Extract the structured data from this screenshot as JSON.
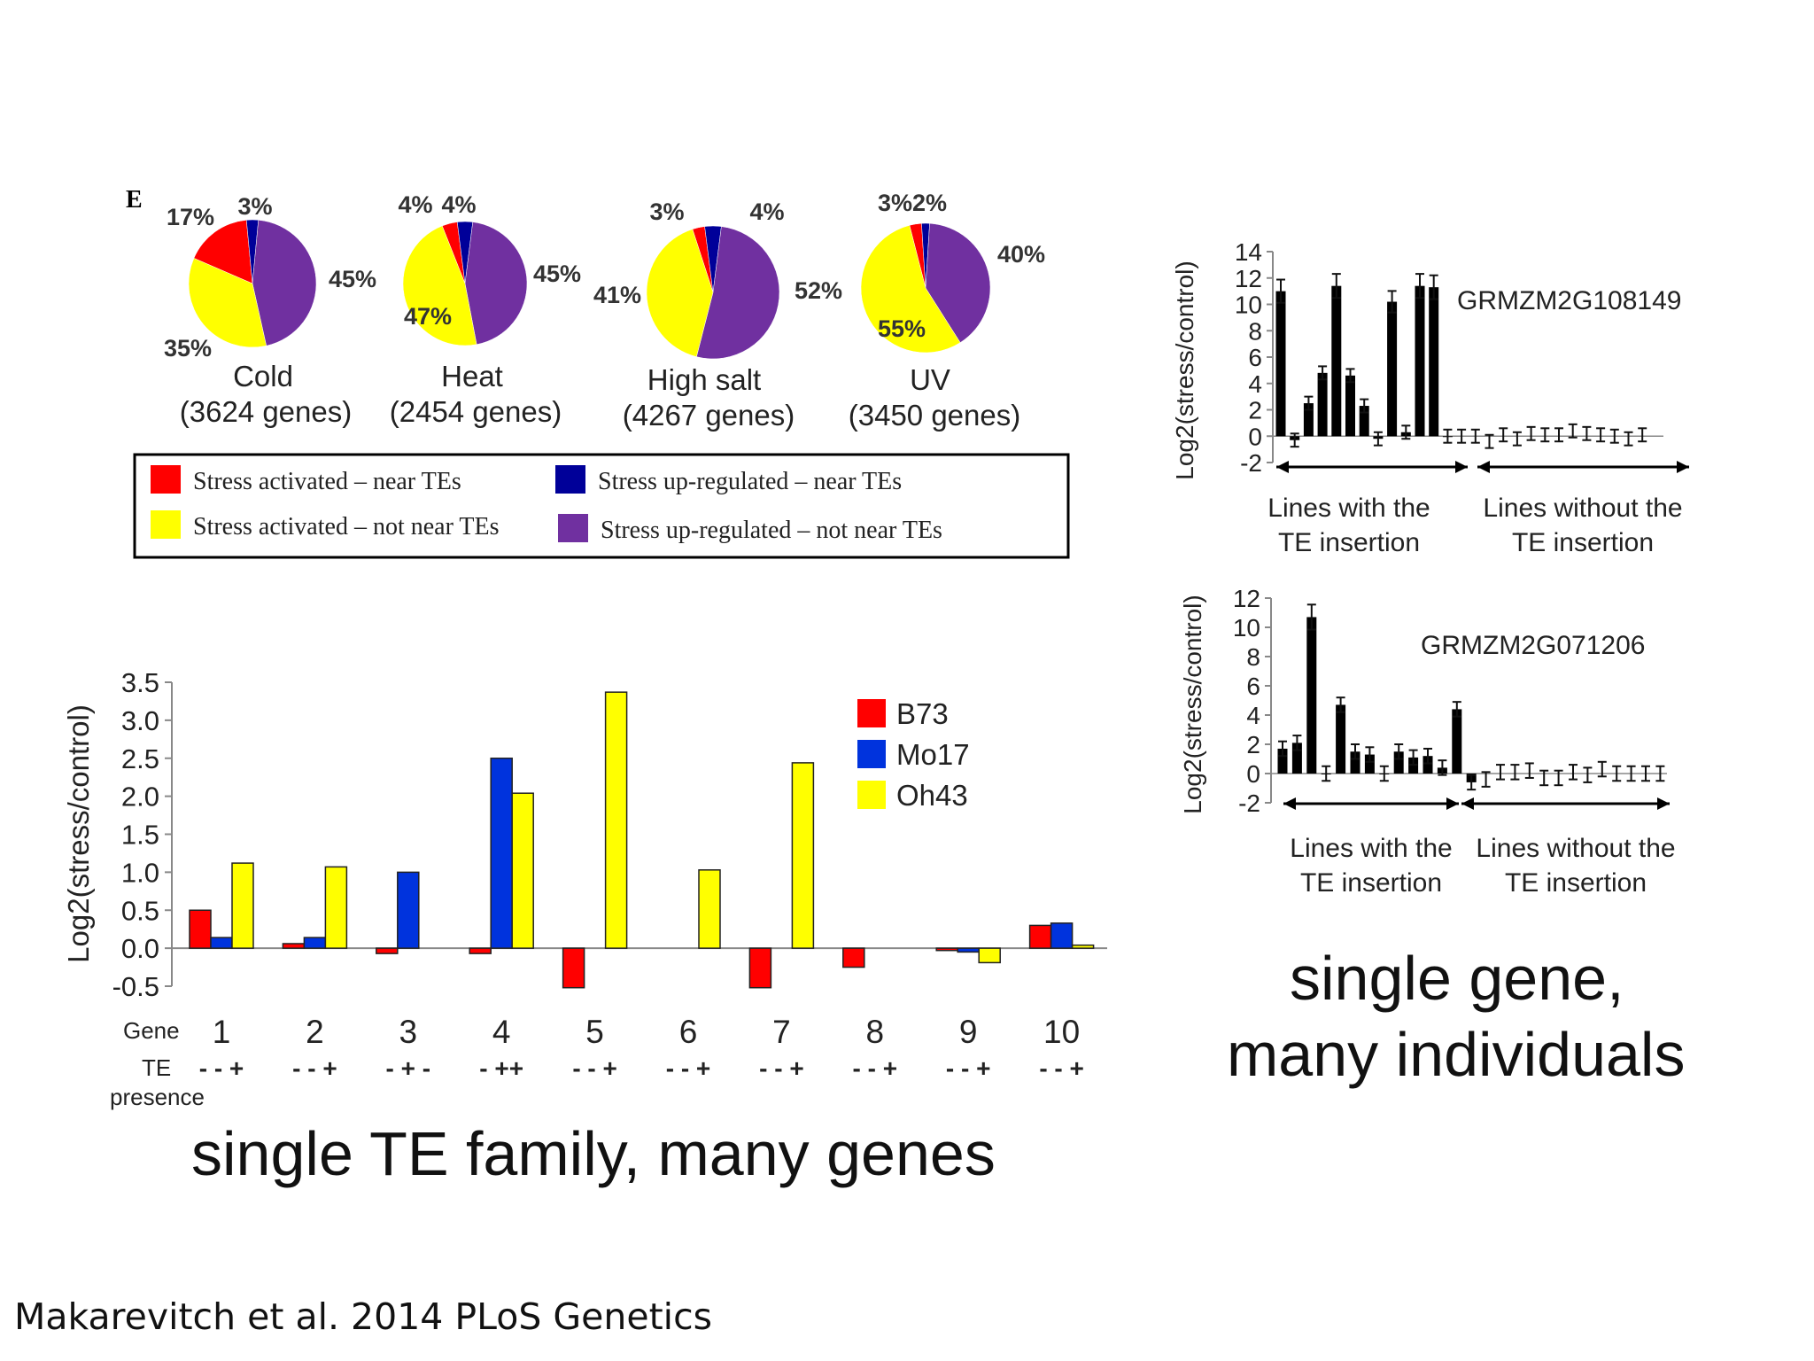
{
  "panel_letter": "E",
  "chart_data": [
    {
      "type": "pie",
      "panels": [
        {
          "title": "Cold",
          "subtitle": "(3624 genes)",
          "slices": [
            {
              "label": "Stress activated – near TEs",
              "value": 17,
              "text": "17%"
            },
            {
              "label": "Stress up-regulated – near TEs",
              "value": 3,
              "text": "3%"
            },
            {
              "label": "Stress up-regulated – not near TEs",
              "value": 45,
              "text": "45%"
            },
            {
              "label": "Stress activated – not near TEs",
              "value": 35,
              "text": "35%"
            }
          ]
        },
        {
          "title": "Heat",
          "subtitle": "(2454 genes)",
          "slices": [
            {
              "label": "Stress activated – near TEs",
              "value": 4,
              "text": "4%"
            },
            {
              "label": "Stress up-regulated – near TEs",
              "value": 4,
              "text": "4%"
            },
            {
              "label": "Stress up-regulated – not near TEs",
              "value": 45,
              "text": "45%"
            },
            {
              "label": "Stress activated – not near TEs",
              "value": 47,
              "text": "47%"
            }
          ]
        },
        {
          "title": "High salt",
          "subtitle": "(4267 genes)",
          "slices": [
            {
              "label": "Stress activated – near TEs",
              "value": 3,
              "text": "3%"
            },
            {
              "label": "Stress up-regulated – near TEs",
              "value": 4,
              "text": "4%"
            },
            {
              "label": "Stress up-regulated – not near TEs",
              "value": 52,
              "text": "52%"
            },
            {
              "label": "Stress activated – not near TEs",
              "value": 41,
              "text": "41%"
            }
          ]
        },
        {
          "title": "UV",
          "subtitle": "(3450 genes)",
          "slices": [
            {
              "label": "Stress activated – near TEs",
              "value": 3,
              "text": "3%2%"
            },
            {
              "label": "Stress up-regulated – near TEs",
              "value": 2,
              "text": ""
            },
            {
              "label": "Stress up-regulated – not near TEs",
              "value": 40,
              "text": "40%"
            },
            {
              "label": "Stress activated – not near TEs",
              "value": 55,
              "text": "55%"
            }
          ]
        }
      ],
      "legend": [
        {
          "label": "Stress activated – near TEs",
          "color": "#ff0000"
        },
        {
          "label": "Stress up-regulated – near TEs",
          "color": "#000099"
        },
        {
          "label": "Stress activated – not near TEs",
          "color": "#ffff00"
        },
        {
          "label": "Stress up-regulated – not near TEs",
          "color": "#7030a0"
        }
      ]
    },
    {
      "type": "bar",
      "ylabel": "Log2(stress/control)",
      "ylim": [
        -0.5,
        3.5
      ],
      "yticks": [
        "3.5",
        "3.0",
        "2.5",
        "2.0",
        "1.5",
        "1.0",
        "0.5",
        "0.0",
        "-0.5"
      ],
      "ytick_values": [
        3.5,
        3.0,
        2.5,
        2.0,
        1.5,
        1.0,
        0.5,
        0.0,
        -0.5
      ],
      "categories": [
        "1",
        "2",
        "3",
        "4",
        "5",
        "6",
        "7",
        "8",
        "9",
        "10"
      ],
      "row_labels": {
        "gene": "Gene",
        "te": "TE",
        "presence": "presence"
      },
      "te_presence": [
        "- - +",
        "- - +",
        "- + -",
        "- ++",
        "- - +",
        "- - +",
        "- - +",
        "- - +",
        "- - +",
        "- - +"
      ],
      "series": [
        {
          "name": "B73",
          "color": "#ff0000",
          "values": [
            0.5,
            0.06,
            -0.07,
            -0.07,
            -0.52,
            0,
            -0.52,
            -0.25,
            -0.03,
            0.3
          ]
        },
        {
          "name": "Mo17",
          "color": "#0033dd",
          "values": [
            0.14,
            0.14,
            1.0,
            2.5,
            0,
            0,
            0,
            0,
            -0.05,
            0.33
          ]
        },
        {
          "name": "Oh43",
          "color": "#ffff00",
          "values": [
            1.12,
            1.07,
            0,
            2.04,
            3.37,
            1.03,
            2.44,
            0,
            -0.19,
            0.04
          ]
        }
      ]
    },
    {
      "type": "bar",
      "title": "GRMZM2G108149",
      "ylabel": "Log2(stress/control)",
      "ylim": [
        -2,
        14
      ],
      "yticks": [
        "14",
        "12",
        "10",
        "8",
        "6",
        "4",
        "2",
        "0",
        "-2"
      ],
      "ytick_values": [
        14,
        12,
        10,
        8,
        6,
        4,
        2,
        0,
        -2
      ],
      "groups": [
        "Lines with the TE insertion",
        "Lines without the TE insertion"
      ],
      "values": [
        11.0,
        -0.3,
        2.5,
        4.8,
        11.4,
        4.6,
        2.3,
        -0.2,
        10.2,
        0.3,
        11.4,
        11.3,
        0.0,
        0.0,
        0.0,
        -0.4,
        0.1,
        -0.2,
        0.2,
        0.1,
        0.1,
        0.4,
        0.2,
        0.1,
        0.0,
        -0.2,
        0.1
      ]
    },
    {
      "type": "bar",
      "title": "GRMZM2G071206",
      "ylabel": "Log2(stress/control)",
      "ylim": [
        -2,
        12
      ],
      "yticks": [
        "12",
        "10",
        "8",
        "6",
        "4",
        "2",
        "0",
        "-2"
      ],
      "ytick_values": [
        12,
        10,
        8,
        6,
        4,
        2,
        0,
        -2
      ],
      "groups": [
        "Lines with the TE insertion",
        "Lines without the TE insertion"
      ],
      "values": [
        1.7,
        2.1,
        10.7,
        0.0,
        4.7,
        1.5,
        1.3,
        0.0,
        1.5,
        1.1,
        1.2,
        0.4,
        4.4,
        -0.6,
        -0.4,
        0.1,
        0.1,
        0.2,
        -0.3,
        -0.3,
        0.1,
        -0.1,
        0.3,
        0.0,
        0.0,
        0.0,
        0.0
      ]
    }
  ],
  "labels": {
    "bottom_left_caption": "single TE family, many genes",
    "right_caption_line1": "single gene,",
    "right_caption_line2": "many individuals",
    "citation": "Makarevitch et al. 2014 PLoS Genetics",
    "group_with_1": "Lines with the",
    "group_with_2": "TE insertion",
    "group_without_1": "Lines without the",
    "group_without_2": "TE insertion"
  }
}
